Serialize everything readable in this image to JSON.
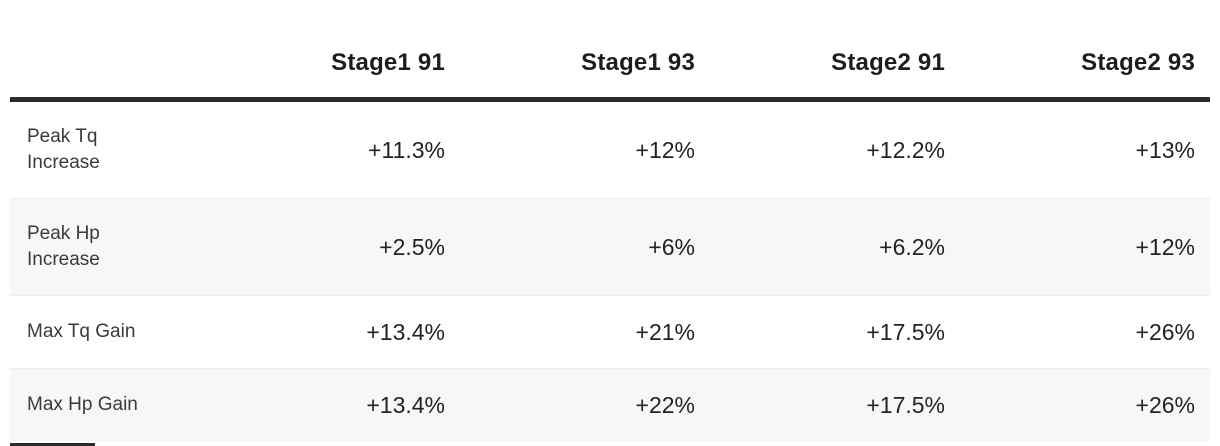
{
  "chart_data": {
    "type": "table",
    "columns": [
      "Stage1 91",
      "Stage1 93",
      "Stage2 91",
      "Stage2 93"
    ],
    "rows": [
      {
        "label": "Peak Tq\nIncrease",
        "values": [
          "+11.3%",
          "+12%",
          "+12.2%",
          "+13%"
        ]
      },
      {
        "label": "Peak Hp\nIncrease",
        "values": [
          "+2.5%",
          "+6%",
          "+6.2%",
          "+12%"
        ]
      },
      {
        "label": "Max Tq Gain",
        "values": [
          "+13.4%",
          "+21%",
          "+17.5%",
          "+26%"
        ]
      },
      {
        "label": "Max Hp Gain",
        "values": [
          "+13.4%",
          "+22%",
          "+17.5%",
          "+26%"
        ]
      }
    ],
    "layout": {
      "value_alignment": "right",
      "zebra_striping": true,
      "header_rule": true
    }
  },
  "colors": {
    "header_border": "#2b2b2b",
    "row_stripe": "#f7f7f7",
    "header_text": "#1d1d1d",
    "value_text": "#232323",
    "label_text": "#3a3a3a",
    "background": "#ffffff"
  }
}
